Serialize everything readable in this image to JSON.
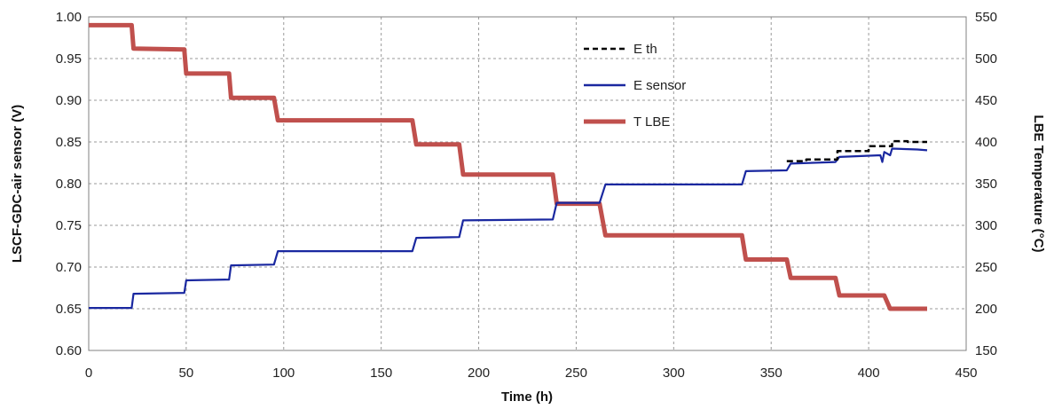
{
  "chart_data": {
    "type": "line",
    "xlabel": "Time (h)",
    "ylabel_left": "LSCF-GDC-air sensor (V)",
    "ylabel_right": "LBE Temperature (°C)",
    "xlim": [
      0,
      450
    ],
    "ylim_left": [
      0.6,
      1.0
    ],
    "ylim_right": [
      150,
      550
    ],
    "x_ticks": [
      "0",
      "50",
      "100",
      "150",
      "200",
      "250",
      "300",
      "350",
      "400",
      "450"
    ],
    "y_ticks_left": [
      "0.60",
      "0.65",
      "0.70",
      "0.75",
      "0.80",
      "0.85",
      "0.90",
      "0.95",
      "1.00"
    ],
    "y_ticks_right": [
      "150",
      "200",
      "250",
      "300",
      "350",
      "400",
      "450",
      "500",
      "550"
    ],
    "grid": true,
    "legend_position": "top-center",
    "series": [
      {
        "name": "E th",
        "axis": "left",
        "color": "#000000",
        "style": "dashed",
        "x": [
          358,
          368,
          368,
          384,
          384,
          400,
          400,
          412,
          412,
          420,
          420,
          430
        ],
        "y": [
          0.827,
          0.827,
          0.829,
          0.829,
          0.839,
          0.839,
          0.845,
          0.845,
          0.851,
          0.851,
          0.85,
          0.85
        ]
      },
      {
        "name": "E sensor",
        "axis": "left",
        "color": "#1a28a0",
        "style": "solid",
        "x": [
          0,
          22,
          23,
          49,
          50,
          72,
          73,
          95,
          97,
          166,
          168,
          190,
          192,
          238,
          240,
          262,
          265,
          335,
          337,
          358,
          360,
          383,
          385,
          406,
          407,
          408,
          411,
          412,
          425,
          430
        ],
        "y": [
          0.651,
          0.651,
          0.668,
          0.669,
          0.684,
          0.685,
          0.702,
          0.703,
          0.719,
          0.719,
          0.735,
          0.736,
          0.756,
          0.757,
          0.777,
          0.777,
          0.799,
          0.799,
          0.815,
          0.816,
          0.824,
          0.826,
          0.832,
          0.834,
          0.826,
          0.838,
          0.834,
          0.842,
          0.841,
          0.84
        ]
      },
      {
        "name": "T LBE",
        "axis": "right",
        "color": "#c0504d",
        "style": "solid",
        "x": [
          0,
          22,
          23,
          49,
          50,
          72,
          73,
          95,
          97,
          166,
          168,
          190,
          192,
          238,
          240,
          262,
          265,
          335,
          337,
          358,
          360,
          383,
          385,
          408,
          411,
          430
        ],
        "y": [
          540,
          540,
          512,
          511,
          482,
          482,
          453,
          453,
          426,
          426,
          397,
          397,
          361,
          361,
          326,
          326,
          288,
          288,
          259,
          259,
          237,
          237,
          216,
          216,
          200,
          200
        ]
      }
    ]
  }
}
